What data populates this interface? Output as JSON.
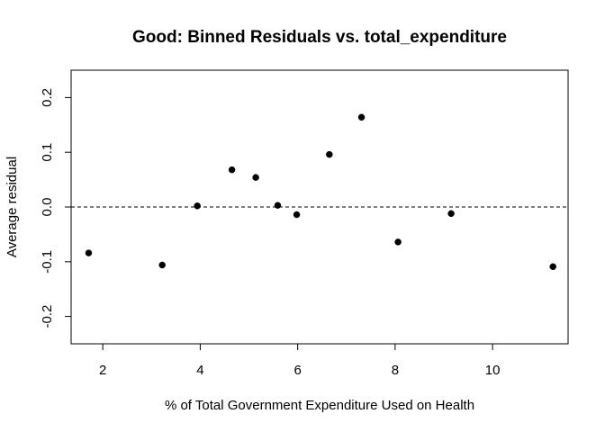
{
  "chart_data": {
    "type": "scatter",
    "title": "Good: Binned Residuals vs. total_expenditure",
    "xlabel": "% of Total Government Expenditure Used on Health",
    "ylabel": "Average residual",
    "xlim": [
      1.35,
      11.55
    ],
    "ylim": [
      -0.25,
      0.25
    ],
    "x_ticks": [
      2,
      4,
      6,
      8,
      10
    ],
    "x_tick_labels": [
      "2",
      "4",
      "6",
      "8",
      "10"
    ],
    "y_ticks": [
      -0.2,
      -0.1,
      0.0,
      0.1,
      0.2
    ],
    "y_tick_labels": [
      "-0.2",
      "-0.1",
      "0.0",
      "0.1",
      "0.2"
    ],
    "reference_line_y": 0.0,
    "reference_line_style": "dashed",
    "grid": false,
    "point_color": "#000000",
    "series": [
      {
        "x": [
          1.71,
          3.22,
          3.94,
          4.65,
          5.14,
          5.59,
          5.98,
          6.65,
          7.31,
          8.06,
          9.15,
          11.24
        ],
        "y": [
          -0.084,
          -0.106,
          0.002,
          0.068,
          0.054,
          0.003,
          -0.014,
          0.096,
          0.164,
          -0.064,
          -0.012,
          -0.109
        ]
      }
    ]
  }
}
